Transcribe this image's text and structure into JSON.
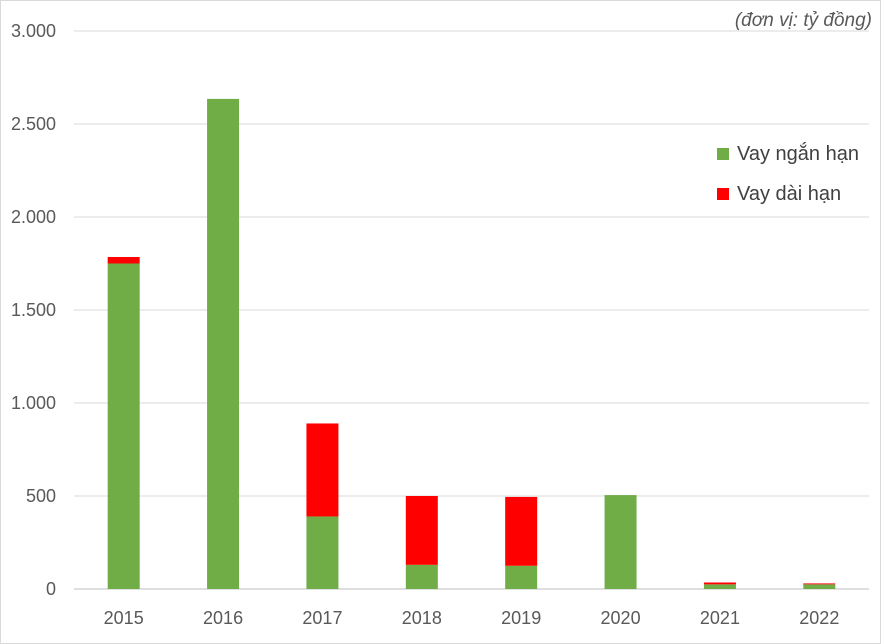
{
  "chart_data": {
    "type": "bar",
    "stacked": true,
    "title": "",
    "unit_note": "(đơn vị: tỷ đồng)",
    "xlabel": "",
    "ylabel": "",
    "categories": [
      "2015",
      "2016",
      "2017",
      "2018",
      "2019",
      "2020",
      "2021",
      "2022"
    ],
    "series": [
      {
        "name": "Vay ngắn hạn",
        "color": "#70ad47",
        "values": [
          1750,
          2635,
          390,
          130,
          125,
          505,
          25,
          25
        ]
      },
      {
        "name": "Vay dài hạn",
        "color": "#ff0000",
        "values": [
          35,
          0,
          500,
          370,
          370,
          0,
          10,
          5
        ]
      }
    ],
    "ylim": [
      0,
      3000
    ],
    "yticks": [
      0,
      500,
      1000,
      1500,
      2000,
      2500,
      3000
    ],
    "ytick_labels": [
      "0",
      "500",
      "1.000",
      "1.500",
      "2.000",
      "2.500",
      "3.000"
    ],
    "grid": true,
    "legend_position": "right"
  }
}
